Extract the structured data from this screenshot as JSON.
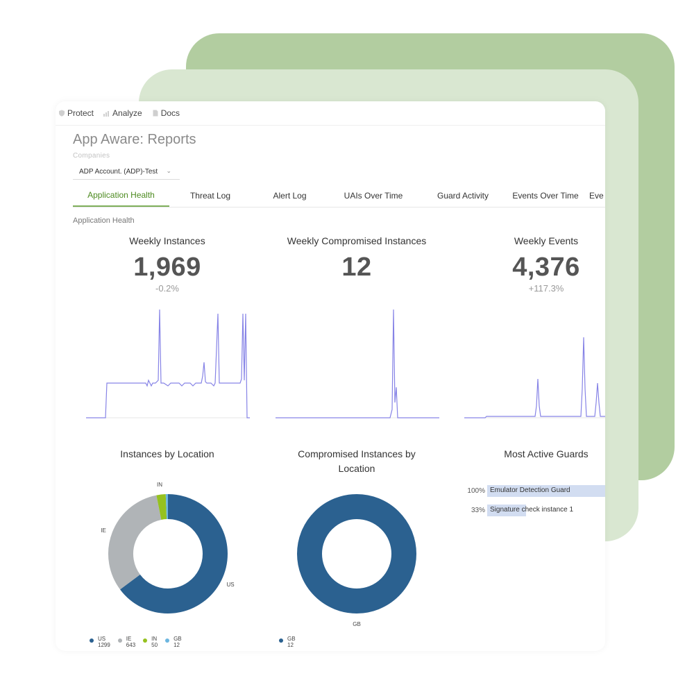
{
  "nav": {
    "items": [
      {
        "label": "Protect",
        "icon": "shield-icon"
      },
      {
        "label": "Analyze",
        "icon": "chart-icon"
      },
      {
        "label": "Docs",
        "icon": "document-icon"
      }
    ]
  },
  "page": {
    "title": "App Aware: Reports",
    "companies_label": "Companies",
    "company_selected": "ADP Account. (ADP)-Test"
  },
  "tabs": [
    {
      "label": "Application Health",
      "active": true
    },
    {
      "label": "Threat Log"
    },
    {
      "label": "Alert Log"
    },
    {
      "label": "UAIs Over Time"
    },
    {
      "label": "Guard Activity"
    },
    {
      "label": "Events Over Time"
    },
    {
      "label": "Eve"
    }
  ],
  "section": {
    "label": "Application Health"
  },
  "stats": [
    {
      "title": "Weekly Instances",
      "value": "1,969",
      "change": "-0.2%"
    },
    {
      "title": "Weekly Compromised Instances",
      "value": "12",
      "change": ""
    },
    {
      "title": "Weekly Events",
      "value": "4,376",
      "change": "+117.3%"
    }
  ],
  "colors": {
    "accent_green": "#4c8a1f",
    "spark_line": "#8683e6",
    "us": "#2b6190",
    "ie": "#b0b4b7",
    "in": "#95c11f",
    "gb": "#6cb6e0",
    "guard_bar": "#d2ddf1"
  },
  "charts": {
    "instances_by_location": {
      "title": "Instances by Location",
      "chart_data": {
        "type": "pie",
        "categories": [
          "US",
          "IE",
          "IN",
          "GB"
        ],
        "values": [
          1299,
          643,
          50,
          12
        ]
      },
      "legend": [
        {
          "name": "US",
          "value": "1299"
        },
        {
          "name": "IE",
          "value": "643"
        },
        {
          "name": "IN",
          "value": "50"
        },
        {
          "name": "GB",
          "value": "12"
        }
      ]
    },
    "compromised_by_location": {
      "title": "Compromised Instances by Location",
      "chart_data": {
        "type": "pie",
        "categories": [
          "GB"
        ],
        "values": [
          12
        ]
      },
      "legend": [
        {
          "name": "GB",
          "value": "12"
        }
      ]
    },
    "most_active_guards": {
      "title": "Most Active Guards",
      "chart_data": {
        "type": "bar",
        "categories": [
          "Emulator Detection Guard",
          "Signature check instance 1"
        ],
        "values": [
          100,
          33
        ]
      },
      "rows": [
        {
          "pct": "100%",
          "label": "Emulator Detection Guard",
          "value": 100
        },
        {
          "pct": "33%",
          "label": "Signature check instance 1",
          "value": 33
        }
      ]
    }
  }
}
